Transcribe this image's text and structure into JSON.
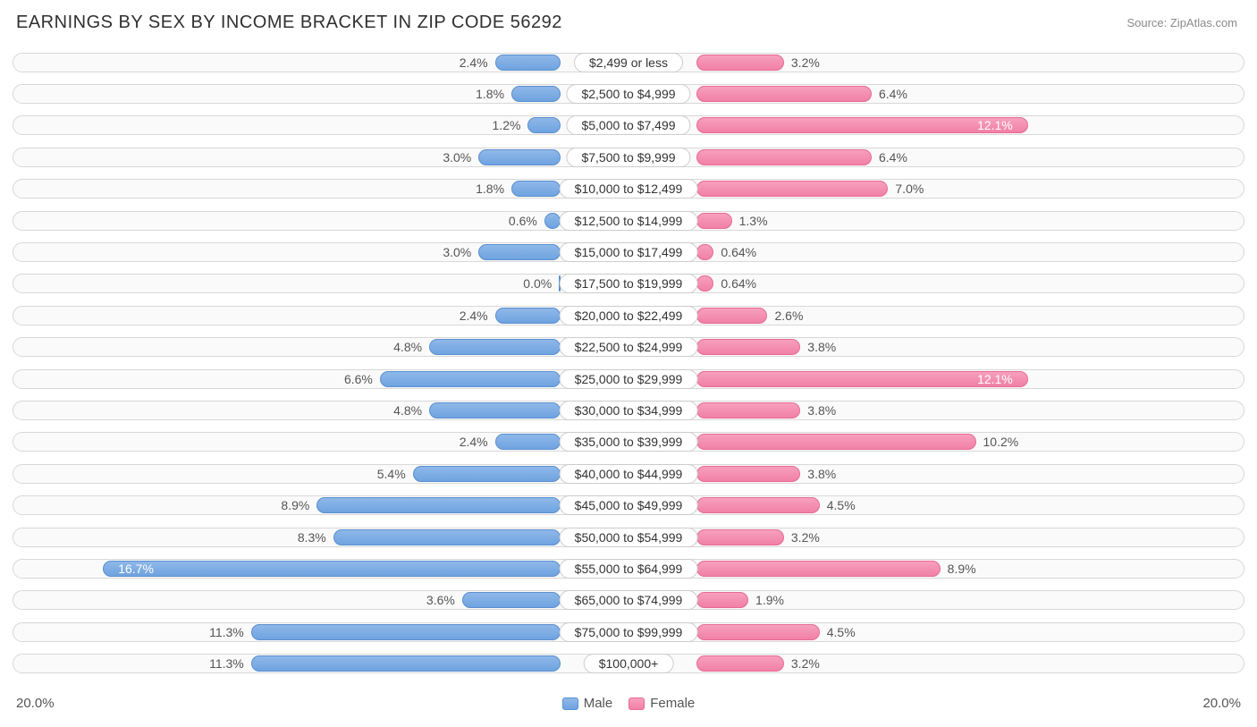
{
  "title": "EARNINGS BY SEX BY INCOME BRACKET IN ZIP CODE 56292",
  "source": "Source: ZipAtlas.com",
  "axis_max": 20.0,
  "axis_left_label": "20.0%",
  "axis_right_label": "20.0%",
  "legend": {
    "male": "Male",
    "female": "Female"
  },
  "colors": {
    "male_fill_top": "#8fb8e8",
    "male_fill_bottom": "#6fa3e0",
    "male_border": "#5a8fd0",
    "female_fill_top": "#f7a0bd",
    "female_fill_bottom": "#f180a7",
    "female_border": "#e86a96",
    "track_border": "#d8d8d8",
    "track_bg": "#fafafa",
    "text": "#555555",
    "title_color": "#303030",
    "source_color": "#8a8a8a",
    "inside_text": "#ffffff"
  },
  "label_widths_half_pct": 11.0,
  "rows": [
    {
      "label": "$2,499 or less",
      "male": 2.4,
      "male_txt": "2.4%",
      "female": 3.2,
      "female_txt": "3.2%"
    },
    {
      "label": "$2,500 to $4,999",
      "male": 1.8,
      "male_txt": "1.8%",
      "female": 6.4,
      "female_txt": "6.4%"
    },
    {
      "label": "$5,000 to $7,499",
      "male": 1.2,
      "male_txt": "1.2%",
      "female": 12.1,
      "female_txt": "12.1%",
      "female_inside": true
    },
    {
      "label": "$7,500 to $9,999",
      "male": 3.0,
      "male_txt": "3.0%",
      "female": 6.4,
      "female_txt": "6.4%"
    },
    {
      "label": "$10,000 to $12,499",
      "male": 1.8,
      "male_txt": "1.8%",
      "female": 7.0,
      "female_txt": "7.0%"
    },
    {
      "label": "$12,500 to $14,999",
      "male": 0.6,
      "male_txt": "0.6%",
      "female": 1.3,
      "female_txt": "1.3%"
    },
    {
      "label": "$15,000 to $17,499",
      "male": 3.0,
      "male_txt": "3.0%",
      "female": 0.64,
      "female_txt": "0.64%"
    },
    {
      "label": "$17,500 to $19,999",
      "male": 0.0,
      "male_txt": "0.0%",
      "female": 0.64,
      "female_txt": "0.64%"
    },
    {
      "label": "$20,000 to $22,499",
      "male": 2.4,
      "male_txt": "2.4%",
      "female": 2.6,
      "female_txt": "2.6%"
    },
    {
      "label": "$22,500 to $24,999",
      "male": 4.8,
      "male_txt": "4.8%",
      "female": 3.8,
      "female_txt": "3.8%"
    },
    {
      "label": "$25,000 to $29,999",
      "male": 6.6,
      "male_txt": "6.6%",
      "female": 12.1,
      "female_txt": "12.1%",
      "female_inside": true
    },
    {
      "label": "$30,000 to $34,999",
      "male": 4.8,
      "male_txt": "4.8%",
      "female": 3.8,
      "female_txt": "3.8%"
    },
    {
      "label": "$35,000 to $39,999",
      "male": 2.4,
      "male_txt": "2.4%",
      "female": 10.2,
      "female_txt": "10.2%"
    },
    {
      "label": "$40,000 to $44,999",
      "male": 5.4,
      "male_txt": "5.4%",
      "female": 3.8,
      "female_txt": "3.8%"
    },
    {
      "label": "$45,000 to $49,999",
      "male": 8.9,
      "male_txt": "8.9%",
      "female": 4.5,
      "female_txt": "4.5%"
    },
    {
      "label": "$50,000 to $54,999",
      "male": 8.3,
      "male_txt": "8.3%",
      "female": 3.2,
      "female_txt": "3.2%"
    },
    {
      "label": "$55,000 to $64,999",
      "male": 16.7,
      "male_txt": "16.7%",
      "male_inside": true,
      "female": 8.9,
      "female_txt": "8.9%"
    },
    {
      "label": "$65,000 to $74,999",
      "male": 3.6,
      "male_txt": "3.6%",
      "female": 1.9,
      "female_txt": "1.9%"
    },
    {
      "label": "$75,000 to $99,999",
      "male": 11.3,
      "male_txt": "11.3%",
      "female": 4.5,
      "female_txt": "4.5%"
    },
    {
      "label": "$100,000+",
      "male": 11.3,
      "male_txt": "11.3%",
      "female": 3.2,
      "female_txt": "3.2%"
    }
  ]
}
